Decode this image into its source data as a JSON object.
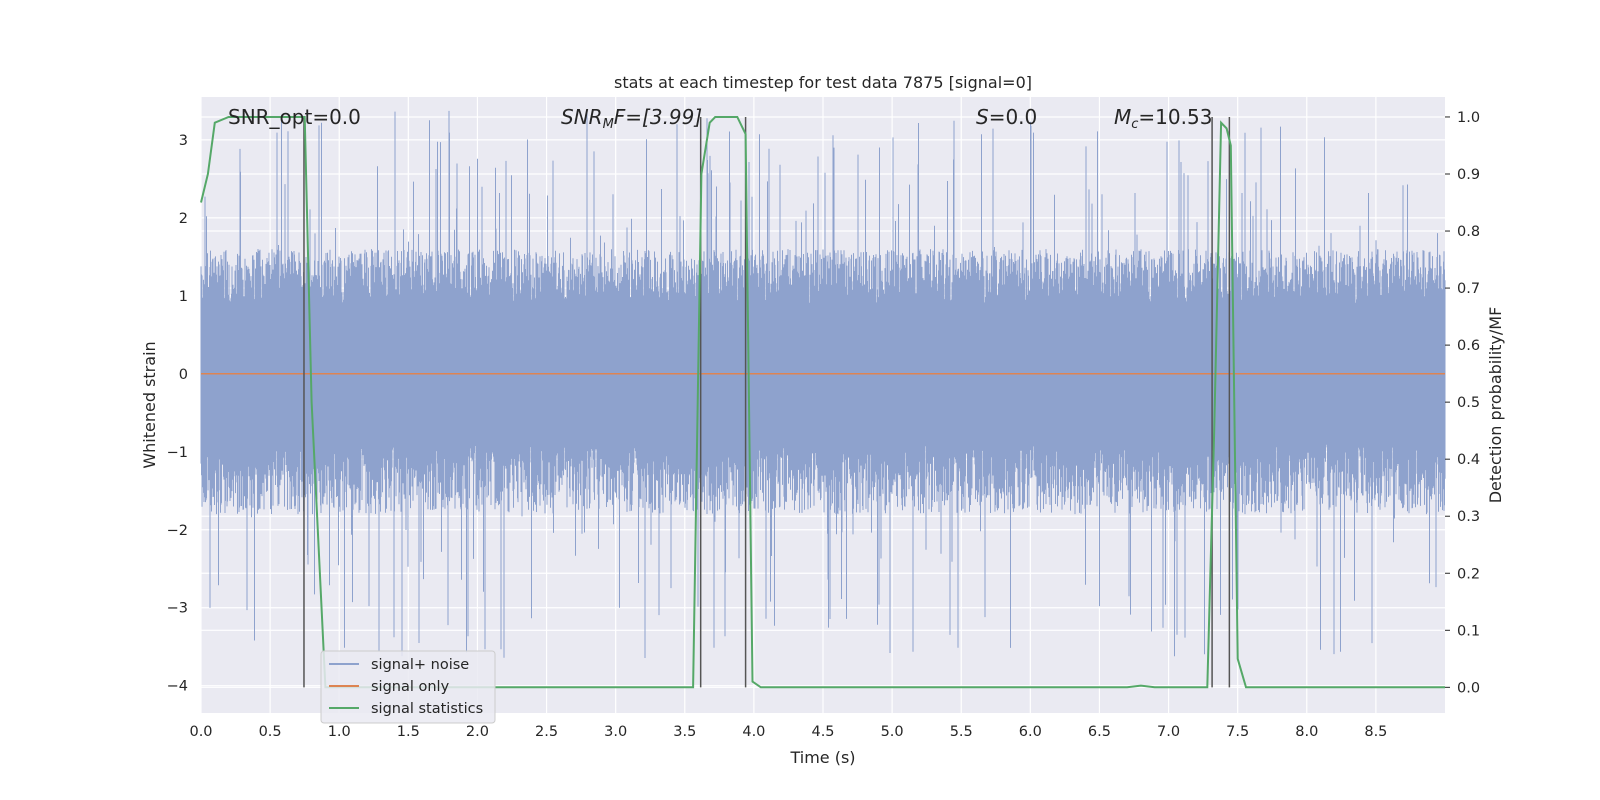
{
  "chart_data": {
    "type": "line",
    "title": "stats at each timestep for test data 7875 [signal=0]",
    "xlabel": "Time (s)",
    "ylabel": "Whitened strain",
    "y2label": "Detection probability/MF",
    "xlim": [
      0.0,
      9.0
    ],
    "ylim": [
      -4.35,
      3.55
    ],
    "y2lim": [
      -0.045,
      1.035
    ],
    "xticks": [
      "0.0",
      "0.5",
      "1.0",
      "1.5",
      "2.0",
      "2.5",
      "3.0",
      "3.5",
      "4.0",
      "4.5",
      "5.0",
      "5.5",
      "6.0",
      "6.5",
      "7.0",
      "7.5",
      "8.0",
      "8.5"
    ],
    "yticks": [
      "3",
      "2",
      "1",
      "0",
      "−1",
      "−2",
      "−3",
      "−4"
    ],
    "y2ticks": [
      "1.0",
      "0.9",
      "0.8",
      "0.7",
      "0.6",
      "0.5",
      "0.4",
      "0.3",
      "0.2",
      "0.1",
      "0.0"
    ],
    "grid": true,
    "legend_position": "lower-left",
    "annotations": {
      "snr_opt": "SNR_opt=0.0",
      "snr_mf_sym": "SNR",
      "snr_mf_sub": "M",
      "snr_mf_rest": "F=[3.99]",
      "s_sym": "S",
      "s_rest": "=0.0",
      "mc_sym": "M",
      "mc_sub": "c",
      "mc_rest": "=10.53"
    },
    "series": [
      {
        "name": "signal+ noise",
        "color": "#8ea2cd",
        "style": "dense noise, roughly between -1.8 and 1.6, peaks from -3.7 to 3.4",
        "band": [
          -1.8,
          1.6
        ],
        "extremes": [
          -3.7,
          3.4
        ]
      },
      {
        "name": "signal only",
        "color": "#dd8452",
        "x": [
          0.0,
          9.0
        ],
        "y": [
          0.0,
          0.0
        ]
      },
      {
        "name": "signal statistics",
        "color": "#55a868",
        "axis": "right",
        "x": [
          0.0,
          0.05,
          0.1,
          0.2,
          0.3,
          0.7,
          0.75,
          0.8,
          0.9,
          3.56,
          3.62,
          3.68,
          3.72,
          3.8,
          3.88,
          3.94,
          3.99,
          4.05,
          6.7,
          6.8,
          6.9,
          7.28,
          7.33,
          7.38,
          7.42,
          7.45,
          7.5,
          7.56,
          9.0
        ],
        "y": [
          0.85,
          0.9,
          0.99,
          1.0,
          1.0,
          1.0,
          1.0,
          0.5,
          0.0,
          0.0,
          0.9,
          0.99,
          1.0,
          1.0,
          1.0,
          0.97,
          0.01,
          0.0,
          0.0,
          0.003,
          0.0,
          0.0,
          0.45,
          0.99,
          0.98,
          0.95,
          0.05,
          0.0,
          0.0
        ]
      }
    ],
    "vlines": [
      0.745,
      3.615,
      3.94,
      7.315,
      7.44
    ],
    "vlines_color": "#555555"
  }
}
